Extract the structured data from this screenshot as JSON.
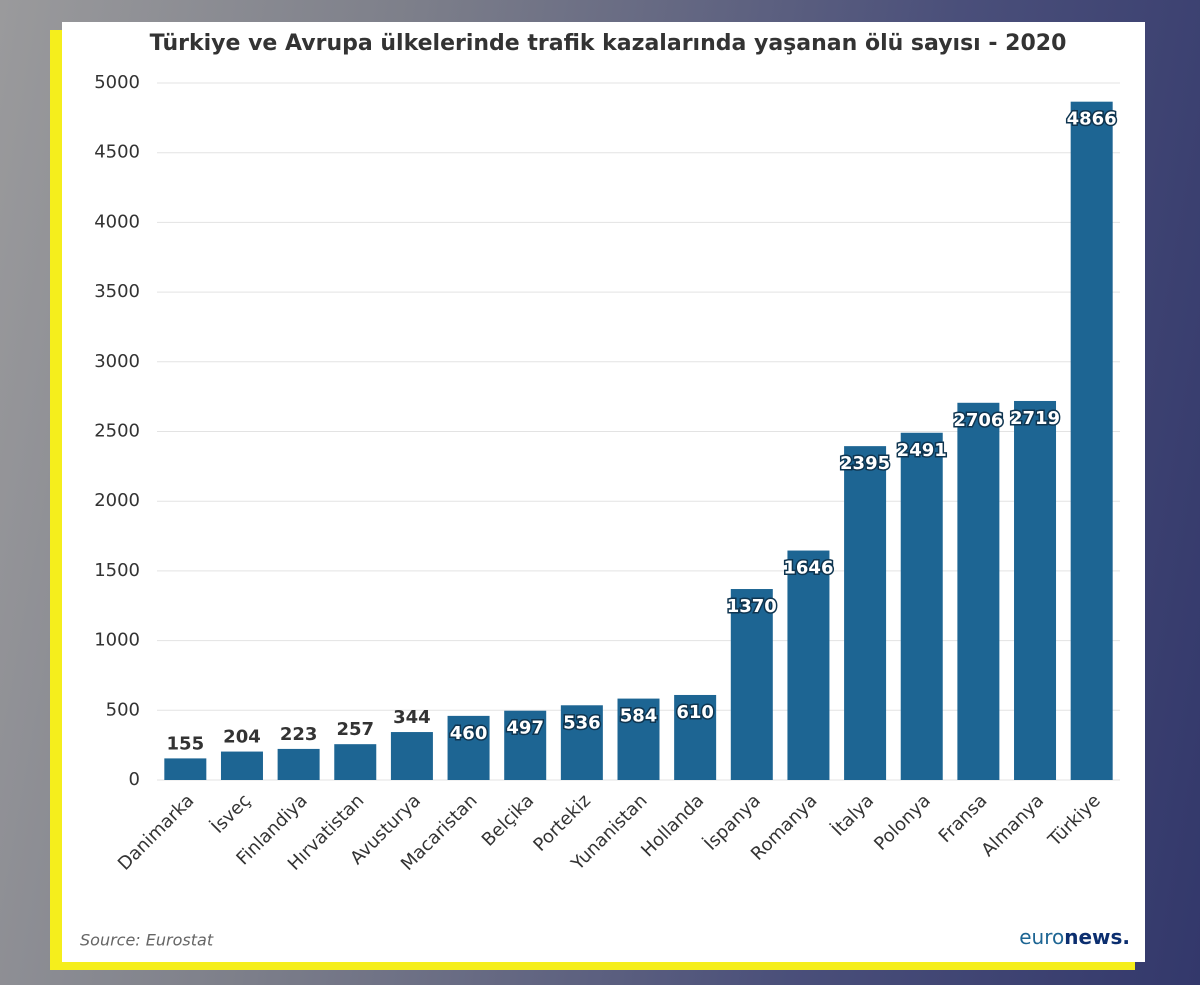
{
  "chart_data": {
    "type": "bar",
    "title": "Türkiye ve Avrupa ülkelerinde trafik kazalarında yaşanan ölü sayısı - 2020",
    "categories": [
      "Danimarka",
      "İsveç",
      "Finlandiya",
      "Hırvatistan",
      "Avusturya",
      "Macaristan",
      "Belçika",
      "Portekiz",
      "Yunanistan",
      "Hollanda",
      "İspanya",
      "Romanya",
      "İtalya",
      "Polonya",
      "Fransa",
      "Almanya",
      "Türkiye"
    ],
    "values": [
      155,
      204,
      223,
      257,
      344,
      460,
      497,
      536,
      584,
      610,
      1370,
      1646,
      2395,
      2491,
      2706,
      2719,
      4866
    ],
    "color": "#1d6593",
    "ylim": [
      0,
      5000
    ],
    "yticks": [
      0,
      500,
      1000,
      1500,
      2000,
      2500,
      3000,
      3500,
      4000,
      4500,
      5000
    ],
    "grid": true,
    "source": "Source: Eurostat",
    "logo": [
      "euro",
      "news."
    ]
  }
}
